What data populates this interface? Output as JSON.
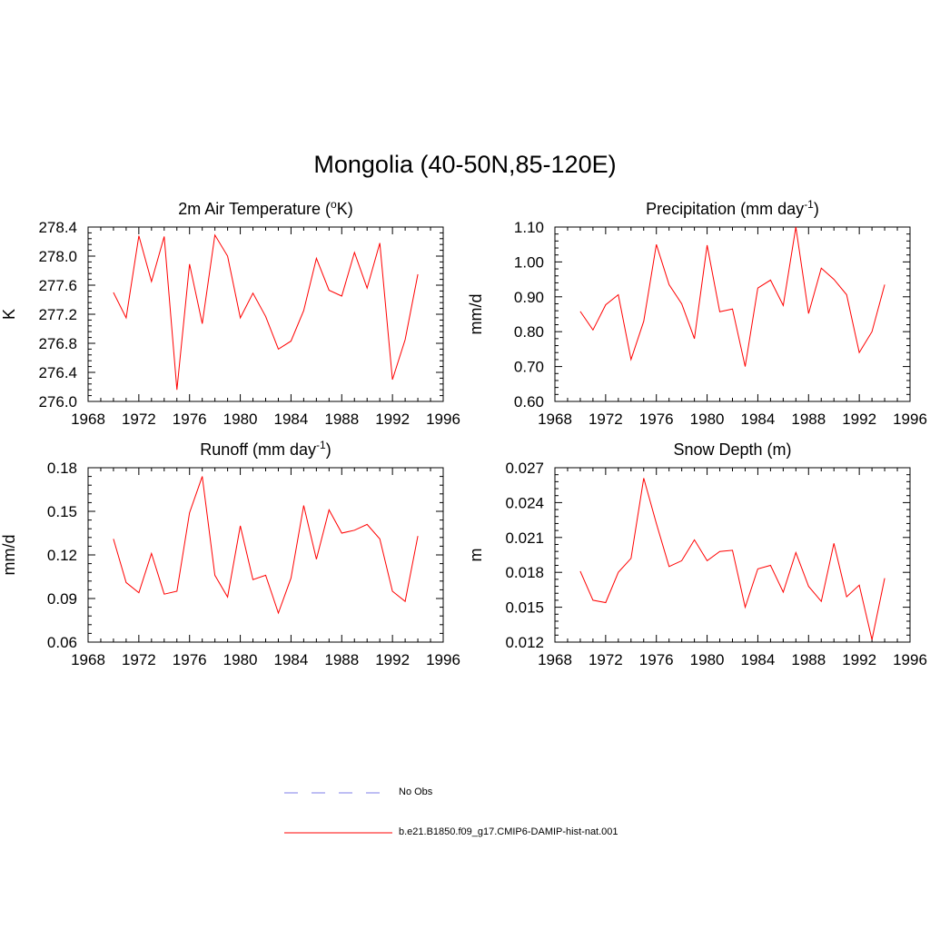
{
  "title": "Mongolia (40-50N,85-120E)",
  "legend": [
    {
      "label": "No Obs",
      "color": "#9999ee",
      "dash": true
    },
    {
      "label": "b.e21.B1850.f09_g17.CMIP6-DAMIP-hist-nat.001",
      "color": "#ff0000",
      "dash": false
    }
  ],
  "chart_data": [
    {
      "type": "line",
      "title": "2m Air Temperature (",
      "title_sup": "o",
      "title_tail": "K)",
      "ylabel": "K",
      "xlim": [
        1968,
        1996
      ],
      "ylim": [
        276.0,
        278.4
      ],
      "xticks": [
        "1968",
        "1972",
        "1976",
        "1980",
        "1984",
        "1988",
        "1992",
        "1996"
      ],
      "yticks": [
        "276.0",
        "276.4",
        "276.8",
        "277.2",
        "277.6",
        "278.0",
        "278.4"
      ],
      "series": [
        {
          "color": "#ff0000",
          "x": [
            1970,
            1971,
            1972,
            1973,
            1974,
            1975,
            1976,
            1977,
            1978,
            1979,
            1980,
            1981,
            1982,
            1983,
            1984,
            1985,
            1986,
            1987,
            1988,
            1989,
            1990,
            1991,
            1992,
            1993,
            1994
          ],
          "values": [
            277.5,
            277.15,
            278.28,
            277.65,
            278.27,
            276.16,
            277.89,
            277.07,
            278.29,
            278.0,
            277.15,
            277.49,
            277.17,
            276.72,
            276.83,
            277.25,
            277.97,
            277.53,
            277.45,
            278.05,
            277.56,
            278.18,
            276.3,
            276.85,
            277.75
          ]
        }
      ]
    },
    {
      "type": "line",
      "title": "Precipitation (mm day",
      "title_sup": "-1",
      "title_tail": ")",
      "ylabel": "mm/d",
      "xlim": [
        1968,
        1996
      ],
      "ylim": [
        0.6,
        1.1
      ],
      "xticks": [
        "1968",
        "1972",
        "1976",
        "1980",
        "1984",
        "1988",
        "1992",
        "1996"
      ],
      "yticks": [
        "0.60",
        "0.70",
        "0.80",
        "0.90",
        "1.00",
        "1.10"
      ],
      "series": [
        {
          "color": "#ff0000",
          "x": [
            1970,
            1971,
            1972,
            1973,
            1974,
            1975,
            1976,
            1977,
            1978,
            1979,
            1980,
            1981,
            1982,
            1983,
            1984,
            1985,
            1986,
            1987,
            1988,
            1989,
            1990,
            1991,
            1992,
            1993,
            1994
          ],
          "values": [
            0.858,
            0.805,
            0.877,
            0.906,
            0.72,
            0.83,
            1.05,
            0.935,
            0.88,
            0.78,
            1.048,
            0.857,
            0.865,
            0.7,
            0.925,
            0.948,
            0.875,
            1.1,
            0.852,
            0.982,
            0.95,
            0.906,
            0.74,
            0.8,
            0.935
          ]
        }
      ]
    },
    {
      "type": "line",
      "title": "Runoff (mm day",
      "title_sup": "-1",
      "title_tail": ")",
      "ylabel": "mm/d",
      "xlim": [
        1968,
        1996
      ],
      "ylim": [
        0.06,
        0.18
      ],
      "xticks": [
        "1968",
        "1972",
        "1976",
        "1980",
        "1984",
        "1988",
        "1992",
        "1996"
      ],
      "yticks": [
        "0.06",
        "0.09",
        "0.12",
        "0.15",
        "0.18"
      ],
      "series": [
        {
          "color": "#ff0000",
          "x": [
            1970,
            1971,
            1972,
            1973,
            1974,
            1975,
            1976,
            1977,
            1978,
            1979,
            1980,
            1981,
            1982,
            1983,
            1984,
            1985,
            1986,
            1987,
            1988,
            1989,
            1990,
            1991,
            1992,
            1993,
            1994
          ],
          "values": [
            0.131,
            0.101,
            0.094,
            0.121,
            0.093,
            0.095,
            0.149,
            0.174,
            0.106,
            0.091,
            0.14,
            0.103,
            0.106,
            0.08,
            0.104,
            0.154,
            0.117,
            0.151,
            0.135,
            0.137,
            0.141,
            0.131,
            0.095,
            0.088,
            0.133
          ]
        }
      ]
    },
    {
      "type": "line",
      "title": "Snow Depth (m)",
      "title_sup": "",
      "title_tail": "",
      "ylabel": "m",
      "xlim": [
        1968,
        1996
      ],
      "ylim": [
        0.012,
        0.027
      ],
      "xticks": [
        "1968",
        "1972",
        "1976",
        "1980",
        "1984",
        "1988",
        "1992",
        "1996"
      ],
      "yticks": [
        "0.012",
        "0.015",
        "0.018",
        "0.021",
        "0.024",
        "0.027"
      ],
      "series": [
        {
          "color": "#ff0000",
          "x": [
            1970,
            1971,
            1972,
            1973,
            1974,
            1975,
            1976,
            1977,
            1978,
            1979,
            1980,
            1981,
            1982,
            1983,
            1984,
            1985,
            1986,
            1987,
            1988,
            1989,
            1990,
            1991,
            1992,
            1993,
            1994
          ],
          "values": [
            0.0181,
            0.0156,
            0.0154,
            0.018,
            0.0192,
            0.0261,
            0.0222,
            0.0185,
            0.019,
            0.0208,
            0.019,
            0.0198,
            0.0199,
            0.015,
            0.0183,
            0.0186,
            0.0163,
            0.0197,
            0.0168,
            0.0155,
            0.0205,
            0.0159,
            0.0169,
            0.0122,
            0.0175
          ]
        }
      ]
    }
  ]
}
